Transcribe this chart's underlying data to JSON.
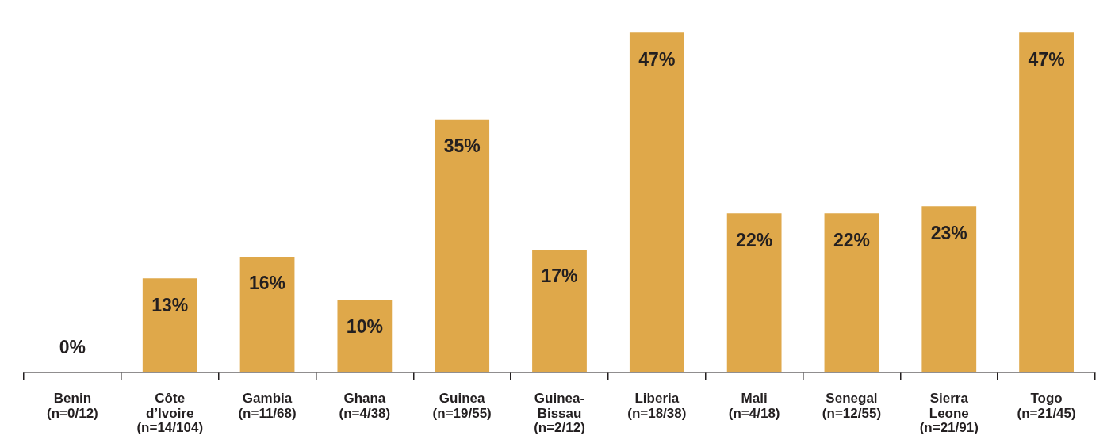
{
  "chart_data": {
    "type": "bar",
    "categories": [
      "Benin\n(n=0/12)",
      "Côte\nd’Ivoire\n(n=14/104)",
      "Gambia\n(n=11/68)",
      "Ghana\n(n=4/38)",
      "Guinea\n(n=19/55)",
      "Guinea-\nBissau\n(n=2/12)",
      "Liberia\n(n=18/38)",
      "Mali\n(n=4/18)",
      "Senegal\n(n=12/55)",
      "Sierra\nLeone\n(n=21/91)",
      "Togo\n(n=21/45)"
    ],
    "values": [
      0,
      13,
      16,
      10,
      35,
      17,
      47,
      22,
      22,
      23,
      47
    ],
    "value_labels": [
      "0%",
      "13%",
      "16%",
      "10%",
      "35%",
      "17%",
      "47%",
      "22%",
      "22%",
      "23%",
      "47%"
    ],
    "color": "#dfa84a",
    "grid": false,
    "legend": false,
    "tick_labels": "x"
  }
}
